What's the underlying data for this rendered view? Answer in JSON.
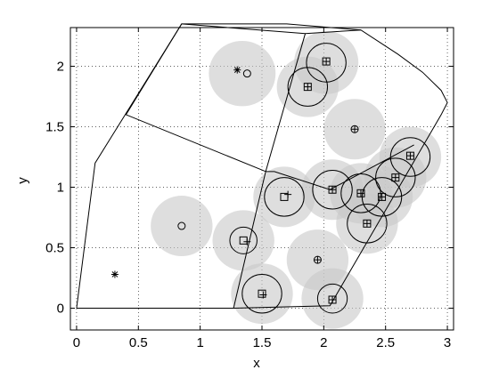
{
  "chart_data": {
    "type": "scatter",
    "xlabel": "x",
    "ylabel": "y",
    "xlim": [
      -0.05,
      3.05
    ],
    "ylim": [
      -0.18,
      2.32
    ],
    "x_ticks": [
      0,
      0.5,
      1,
      1.5,
      2,
      2.5,
      3
    ],
    "x_tick_labels": [
      "0",
      "0.5",
      "1",
      "1.5",
      "2",
      "2.5",
      "3"
    ],
    "y_ticks": [
      0,
      0.5,
      1,
      1.5,
      2
    ],
    "y_tick_labels": [
      "0",
      "0.5",
      "1",
      "1.5",
      "2"
    ],
    "grid": true,
    "colors": {
      "coverage": "#c8c8c8",
      "line": "#000000"
    },
    "boundary": [
      [
        0,
        0
      ],
      [
        1.27,
        0
      ],
      [
        2.05,
        0.02
      ],
      [
        2.95,
        1.6
      ],
      [
        3.0,
        1.7
      ],
      [
        2.95,
        1.8
      ],
      [
        2.8,
        1.95
      ],
      [
        2.6,
        2.1
      ],
      [
        2.3,
        2.3
      ],
      [
        1.7,
        2.35
      ],
      [
        0.85,
        2.35
      ],
      [
        0.15,
        1.2
      ],
      [
        0,
        0
      ]
    ],
    "partition_lines": [
      [
        [
          0.85,
          2.35
        ],
        [
          0.4,
          1.6
        ],
        [
          1.53,
          1.13
        ]
      ],
      [
        [
          0.85,
          2.35
        ],
        [
          1.85,
          2.27
        ],
        [
          2.3,
          2.3
        ]
      ],
      [
        [
          1.85,
          2.27
        ],
        [
          1.53,
          1.13
        ]
      ],
      [
        [
          1.53,
          1.13
        ],
        [
          1.27,
          0
        ]
      ],
      [
        [
          1.53,
          1.13
        ],
        [
          1.6,
          1.13
        ],
        [
          2.05,
          0.98
        ],
        [
          2.73,
          1.35
        ]
      ]
    ],
    "coverage_circles": [
      {
        "cx": 1.34,
        "cy": 1.94,
        "r": 0.27
      },
      {
        "cx": 2.02,
        "cy": 2.03,
        "r": 0.26
      },
      {
        "cx": 1.87,
        "cy": 1.83,
        "r": 0.25
      },
      {
        "cx": 2.25,
        "cy": 1.48,
        "r": 0.25
      },
      {
        "cx": 0.85,
        "cy": 0.68,
        "r": 0.25
      },
      {
        "cx": 1.35,
        "cy": 0.56,
        "r": 0.25
      },
      {
        "cx": 1.68,
        "cy": 0.92,
        "r": 0.25
      },
      {
        "cx": 1.95,
        "cy": 0.4,
        "r": 0.25
      },
      {
        "cx": 2.07,
        "cy": 0.98,
        "r": 0.25
      },
      {
        "cx": 2.3,
        "cy": 0.95,
        "r": 0.25
      },
      {
        "cx": 2.35,
        "cy": 0.7,
        "r": 0.25
      },
      {
        "cx": 2.47,
        "cy": 0.92,
        "r": 0.25
      },
      {
        "cx": 2.58,
        "cy": 1.08,
        "r": 0.25
      },
      {
        "cx": 2.7,
        "cy": 1.25,
        "r": 0.25
      },
      {
        "cx": 1.5,
        "cy": 0.12,
        "r": 0.25
      },
      {
        "cx": 2.07,
        "cy": 0.08,
        "r": 0.25
      }
    ],
    "sensing_circles": [
      {
        "cx": 2.02,
        "cy": 2.03,
        "r": 0.16
      },
      {
        "cx": 1.87,
        "cy": 1.83,
        "r": 0.16
      },
      {
        "cx": 1.35,
        "cy": 0.56,
        "r": 0.11
      },
      {
        "cx": 1.68,
        "cy": 0.92,
        "r": 0.16
      },
      {
        "cx": 2.07,
        "cy": 0.98,
        "r": 0.16
      },
      {
        "cx": 2.3,
        "cy": 0.95,
        "r": 0.16
      },
      {
        "cx": 2.35,
        "cy": 0.7,
        "r": 0.16
      },
      {
        "cx": 2.47,
        "cy": 0.92,
        "r": 0.16
      },
      {
        "cx": 2.58,
        "cy": 1.08,
        "r": 0.16
      },
      {
        "cx": 2.7,
        "cy": 1.25,
        "r": 0.16
      },
      {
        "cx": 1.5,
        "cy": 0.12,
        "r": 0.16
      },
      {
        "cx": 2.07,
        "cy": 0.08,
        "r": 0.12
      }
    ],
    "square_markers": [
      [
        2.02,
        2.04
      ],
      [
        1.87,
        1.83
      ],
      [
        1.35,
        0.56
      ],
      [
        1.68,
        0.92
      ],
      [
        2.07,
        0.98
      ],
      [
        2.3,
        0.95
      ],
      [
        2.35,
        0.7
      ],
      [
        2.47,
        0.92
      ],
      [
        2.58,
        1.08
      ],
      [
        2.7,
        1.26
      ],
      [
        1.5,
        0.12
      ],
      [
        2.07,
        0.07
      ]
    ],
    "plus_markers": [
      [
        2.02,
        2.04
      ],
      [
        1.87,
        1.83
      ],
      [
        1.38,
        0.55
      ],
      [
        1.71,
        0.94
      ],
      [
        2.07,
        0.98
      ],
      [
        2.3,
        0.95
      ],
      [
        2.35,
        0.7
      ],
      [
        2.47,
        0.92
      ],
      [
        2.58,
        1.08
      ],
      [
        2.7,
        1.26
      ],
      [
        1.51,
        0.11
      ],
      [
        2.07,
        0.07
      ],
      [
        2.25,
        1.48
      ],
      [
        1.95,
        0.4
      ]
    ],
    "circle_markers": [
      [
        1.38,
        1.94
      ],
      [
        0.85,
        0.68
      ],
      [
        2.25,
        1.48
      ],
      [
        1.95,
        0.4
      ]
    ],
    "star_markers": [
      [
        1.3,
        1.97
      ],
      [
        0.31,
        0.28
      ]
    ]
  }
}
